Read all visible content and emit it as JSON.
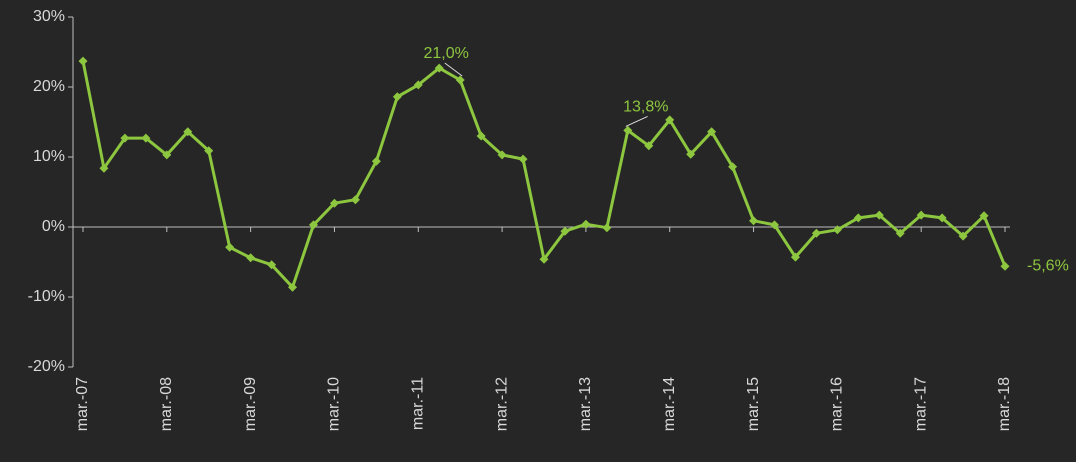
{
  "chart_data": {
    "type": "line",
    "categories": [
      "mar.-07",
      null,
      null,
      null,
      "mar.-08",
      null,
      null,
      null,
      "mar.-09",
      null,
      null,
      null,
      "mar.-10",
      null,
      null,
      null,
      "mar.-11",
      null,
      null,
      null,
      "mar.-12",
      null,
      null,
      null,
      "mar.-13",
      null,
      null,
      null,
      "mar.-14",
      null,
      null,
      null,
      "mar.-15",
      null,
      null,
      null,
      "mar.-16",
      null,
      null,
      null,
      "mar.-17",
      null,
      null,
      null,
      "mar.-18"
    ],
    "series": [
      {
        "color": "#8dc63f",
        "values": [
          23.7,
          8.4,
          12.7,
          12.7,
          10.3,
          13.6,
          10.9,
          -2.9,
          -4.4,
          -5.4,
          -8.6,
          0.3,
          3.4,
          3.9,
          9.4,
          18.6,
          20.3,
          22.7,
          21.0,
          13.0,
          10.3,
          9.7,
          -4.6,
          -0.6,
          0.4,
          -0.1,
          13.8,
          11.6,
          15.3,
          10.4,
          13.6,
          8.6,
          0.9,
          0.3,
          -4.3,
          -0.9,
          -0.4,
          1.3,
          1.7,
          -0.9,
          1.7,
          1.3,
          -1.3,
          1.6,
          -5.6
        ],
        "value_labels": [
          null,
          null,
          null,
          null,
          null,
          null,
          null,
          null,
          null,
          null,
          null,
          null,
          null,
          null,
          null,
          null,
          null,
          null,
          "21,0%",
          null,
          null,
          null,
          null,
          null,
          null,
          null,
          "13,8%",
          null,
          null,
          null,
          null,
          null,
          null,
          null,
          null,
          null,
          null,
          null,
          null,
          null,
          null,
          null,
          null,
          null,
          "-5,6%"
        ]
      }
    ],
    "ylim": [
      -20,
      30
    ],
    "yticks": [
      {
        "value": -20,
        "label": "-20%"
      },
      {
        "value": -10,
        "label": "-10%"
      },
      {
        "value": 0,
        "label": "0%"
      },
      {
        "value": 10,
        "label": "10%"
      },
      {
        "value": 20,
        "label": "20%"
      },
      {
        "value": 30,
        "label": "30%"
      }
    ],
    "grid": false
  }
}
